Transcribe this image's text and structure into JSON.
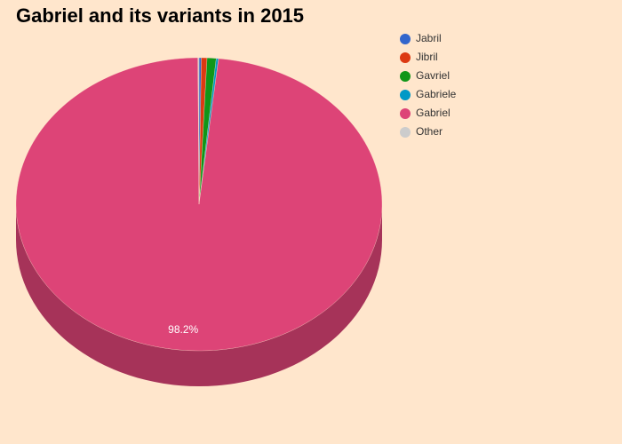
{
  "chart_data": {
    "type": "pie",
    "title": "Gabriel and its variants in 2015",
    "categories": [
      "Jabril",
      "Jibril",
      "Gavriel",
      "Gabriele",
      "Gabriel",
      "Other"
    ],
    "values": [
      0.2,
      0.5,
      0.8,
      0.2,
      98.2,
      0.1
    ],
    "value_labels": [
      null,
      null,
      null,
      null,
      "98.2%",
      null
    ],
    "colors": [
      "#3366cc",
      "#dc3912",
      "#109618",
      "#0099c6",
      "#dd4477",
      "#cccccc"
    ],
    "legend": "top-right"
  }
}
